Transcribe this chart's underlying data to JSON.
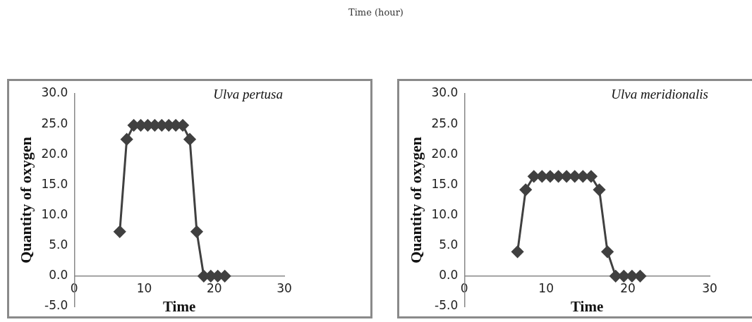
{
  "chart_data": [
    {
      "type": "line",
      "title": "Ulva pertusa",
      "annotations": [
        "Time (hour)"
      ],
      "xlabel": "Time",
      "ylabel": "Quantity of oxygen",
      "marker": "diamond",
      "line_style": "solid",
      "grid": false,
      "legend": false,
      "x": [
        6.5,
        7.5,
        8.5,
        9.5,
        10.5,
        11.5,
        12.5,
        13.5,
        14.5,
        15.5,
        16.5,
        17.5,
        18.5,
        19.5,
        20.5,
        21.5
      ],
      "series": [
        {
          "color": "#404040",
          "values": [
            7.3,
            22.5,
            24.8,
            24.8,
            24.8,
            24.8,
            24.8,
            24.8,
            24.8,
            24.8,
            22.5,
            7.3,
            0,
            0,
            0,
            0
          ]
        }
      ],
      "xlim": [
        0,
        30
      ],
      "xticks": [
        0,
        10,
        20,
        30
      ],
      "ylim": [
        -5,
        30
      ],
      "yticks": [
        {
          "value": -5,
          "label": "-5.0"
        },
        {
          "value": 0,
          "label": "0.0"
        },
        {
          "value": 5,
          "label": "5.0"
        },
        {
          "value": 10,
          "label": "10.0"
        },
        {
          "value": 15,
          "label": "15.0"
        },
        {
          "value": 20,
          "label": "20.0"
        },
        {
          "value": 25,
          "label": "25.0"
        },
        {
          "value": 30,
          "label": "30.0"
        }
      ]
    },
    {
      "type": "line",
      "title": "Ulva meridionalis",
      "xlabel": "Time",
      "ylabel": "Quantity of oxygen",
      "marker": "diamond",
      "line_style": "solid",
      "grid": false,
      "legend": false,
      "x": [
        6.5,
        7.5,
        8.5,
        9.5,
        10.5,
        11.5,
        12.5,
        13.5,
        14.5,
        15.5,
        16.5,
        17.5,
        18.5,
        19.5,
        20.5,
        21.5
      ],
      "series": [
        {
          "color": "#404040",
          "values": [
            4.0,
            14.2,
            16.4,
            16.4,
            16.4,
            16.4,
            16.4,
            16.4,
            16.4,
            16.4,
            14.2,
            4.0,
            0,
            0,
            0,
            0
          ]
        }
      ],
      "xlim": [
        0,
        30
      ],
      "xticks": [
        0,
        10,
        20,
        30
      ],
      "ylim": [
        -5,
        30
      ],
      "yticks": [
        {
          "value": -5,
          "label": "-5.0"
        },
        {
          "value": 0,
          "label": "0.0"
        },
        {
          "value": 5,
          "label": "5.0"
        },
        {
          "value": 10,
          "label": "10.0"
        },
        {
          "value": 15,
          "label": "15.0"
        },
        {
          "value": 20,
          "label": "20.0"
        },
        {
          "value": 25,
          "label": "25.0"
        },
        {
          "value": 30,
          "label": "30.0"
        }
      ]
    }
  ]
}
